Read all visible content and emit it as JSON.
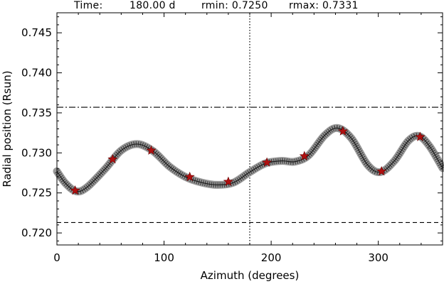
{
  "header": {
    "time_label": "Time:",
    "time_value": "180.00 d",
    "rmin_text": "rmin: 0.7250",
    "rmax_text": "rmax: 0.7331"
  },
  "chart_data": {
    "type": "line",
    "xlabel": "Azimuth (degrees)",
    "ylabel": "Radial position (Rsun)",
    "xlim": [
      0,
      360
    ],
    "ylim": [
      0.7185,
      0.7475
    ],
    "x_ticks": [
      0,
      100,
      200,
      300
    ],
    "x_tick_labels": [
      "0",
      "100",
      "200",
      "300"
    ],
    "y_ticks": [
      0.72,
      0.725,
      0.73,
      0.735,
      0.74,
      0.745
    ],
    "y_tick_labels": [
      "0.720",
      "0.725",
      "0.730",
      "0.735",
      "0.740",
      "0.745"
    ],
    "grid": false,
    "curve": {
      "style": "thick dark gray trace",
      "color": "#4a4a4a",
      "x": [
        0,
        8,
        18,
        28,
        45,
        60,
        75,
        90,
        105,
        120,
        135,
        150,
        165,
        180,
        195,
        210,
        222,
        235,
        250,
        262,
        275,
        290,
        302,
        315,
        328,
        338,
        348,
        360
      ],
      "y": [
        0.7277,
        0.7262,
        0.7252,
        0.7257,
        0.728,
        0.7303,
        0.7311,
        0.7302,
        0.7283,
        0.727,
        0.7263,
        0.726,
        0.7263,
        0.7276,
        0.7287,
        0.729,
        0.7289,
        0.7297,
        0.7322,
        0.7331,
        0.7318,
        0.7285,
        0.7276,
        0.729,
        0.7315,
        0.7321,
        0.7308,
        0.7281
      ]
    },
    "markers": {
      "style": "red star",
      "color": "#b01010",
      "x": [
        17,
        52,
        88,
        124,
        160,
        196,
        231,
        267,
        303,
        339
      ],
      "y": [
        0.7253,
        0.7292,
        0.7303,
        0.727,
        0.7264,
        0.7288,
        0.7296,
        0.7327,
        0.7277,
        0.732
      ]
    },
    "reference_lines": [
      {
        "orientation": "horizontal",
        "value": 0.7357,
        "style": "dash-dot"
      },
      {
        "orientation": "horizontal",
        "value": 0.7213,
        "style": "dashed"
      },
      {
        "orientation": "vertical",
        "value": 180,
        "style": "dotted"
      }
    ]
  }
}
